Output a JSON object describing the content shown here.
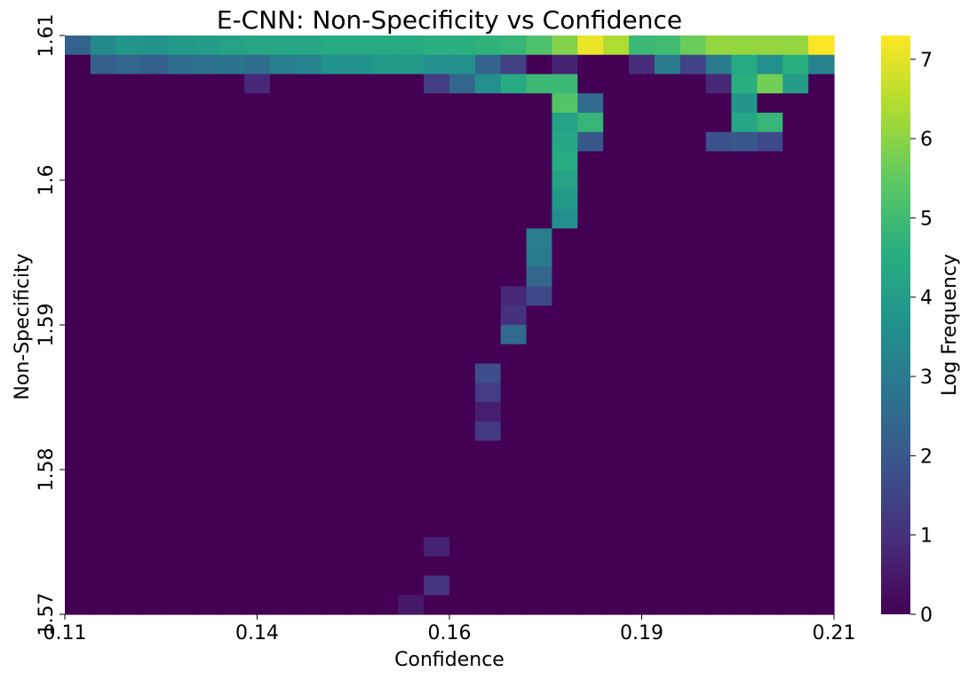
{
  "chart_data": {
    "type": "heatmap",
    "title": "E-CNN: Non-Specificity vs Confidence",
    "xlabel": "Confidence",
    "ylabel": "Non-Specificity",
    "colorbar_label": "Log Frequency",
    "colormap": "viridis",
    "colorbar_range": [
      0,
      7.3
    ],
    "colorbar_ticks": [
      "0",
      "1",
      "2",
      "3",
      "4",
      "5",
      "6",
      "7"
    ],
    "x_tick_labels": [
      "0.11",
      "0.14",
      "0.16",
      "0.19",
      "0.21"
    ],
    "y_tick_labels": [
      "1.61",
      "1.6",
      "1.59",
      "1.58",
      "1.57"
    ],
    "n_cols": 30,
    "n_rows": 30,
    "grid": false,
    "rows": [
      [
        2.3,
        3.4,
        3.8,
        3.7,
        3.9,
        4.0,
        4.2,
        4.3,
        4.3,
        4.3,
        4.4,
        4.4,
        4.4,
        4.4,
        4.6,
        4.6,
        4.7,
        4.8,
        5.2,
        5.9,
        7.1,
        6.4,
        4.9,
        5.0,
        5.6,
        6.1,
        6.1,
        6.1,
        6.1,
        7.3
      ],
      [
        0,
        2.2,
        2.4,
        2.2,
        2.6,
        2.7,
        2.8,
        2.6,
        3.1,
        3.2,
        3.7,
        3.7,
        3.9,
        3.9,
        3.6,
        3.6,
        2.3,
        1.4,
        0,
        0.7,
        0,
        0,
        0.9,
        3.0,
        1.5,
        3.0,
        4.4,
        3.6,
        4.6,
        3.2
      ],
      [
        0,
        0,
        0,
        0,
        0,
        0,
        0,
        0.8,
        0,
        0,
        0,
        0,
        0,
        0,
        1.3,
        2.4,
        3.6,
        4.4,
        4.9,
        4.9,
        0,
        0,
        0,
        0,
        0,
        0.8,
        4.6,
        5.7,
        4.0,
        0
      ],
      [
        0,
        0,
        0,
        0,
        0,
        0,
        0,
        0,
        0,
        0,
        0,
        0,
        0,
        0,
        0,
        0,
        0,
        0,
        0,
        5.3,
        2.5,
        0,
        0,
        0,
        0,
        0,
        3.8,
        0,
        0,
        0
      ],
      [
        0,
        0,
        0,
        0,
        0,
        0,
        0,
        0,
        0,
        0,
        0,
        0,
        0,
        0,
        0,
        0,
        0,
        0,
        0,
        4.2,
        4.8,
        0,
        0,
        0,
        0,
        0,
        4.3,
        4.8,
        0,
        0
      ],
      [
        0,
        0,
        0,
        0,
        0,
        0,
        0,
        0,
        0,
        0,
        0,
        0,
        0,
        0,
        0,
        0,
        0,
        0,
        0,
        4.3,
        2.0,
        0,
        0,
        0,
        0,
        1.8,
        2.0,
        1.6,
        0,
        0
      ],
      [
        0,
        0,
        0,
        0,
        0,
        0,
        0,
        0,
        0,
        0,
        0,
        0,
        0,
        0,
        0,
        0,
        0,
        0,
        0,
        4.5,
        0,
        0,
        0,
        0,
        0,
        0,
        0,
        0,
        0,
        0
      ],
      [
        0,
        0,
        0,
        0,
        0,
        0,
        0,
        0,
        0,
        0,
        0,
        0,
        0,
        0,
        0,
        0,
        0,
        0,
        0,
        4.2,
        0,
        0,
        0,
        0,
        0,
        0,
        0,
        0,
        0,
        0
      ],
      [
        0,
        0,
        0,
        0,
        0,
        0,
        0,
        0,
        0,
        0,
        0,
        0,
        0,
        0,
        0,
        0,
        0,
        0,
        0,
        3.9,
        0,
        0,
        0,
        0,
        0,
        0,
        0,
        0,
        0,
        0
      ],
      [
        0,
        0,
        0,
        0,
        0,
        0,
        0,
        0,
        0,
        0,
        0,
        0,
        0,
        0,
        0,
        0,
        0,
        0,
        0,
        3.6,
        0,
        0,
        0,
        0,
        0,
        0,
        0,
        0,
        0,
        0
      ],
      [
        0,
        0,
        0,
        0,
        0,
        0,
        0,
        0,
        0,
        0,
        0,
        0,
        0,
        0,
        0,
        0,
        0,
        0,
        3.1,
        0,
        0,
        0,
        0,
        0,
        0,
        0,
        0,
        0,
        0,
        0
      ],
      [
        0,
        0,
        0,
        0,
        0,
        0,
        0,
        0,
        0,
        0,
        0,
        0,
        0,
        0,
        0,
        0,
        0,
        0,
        3.0,
        0,
        0,
        0,
        0,
        0,
        0,
        0,
        0,
        0,
        0,
        0
      ],
      [
        0,
        0,
        0,
        0,
        0,
        0,
        0,
        0,
        0,
        0,
        0,
        0,
        0,
        0,
        0,
        0,
        0,
        0,
        2.4,
        0,
        0,
        0,
        0,
        0,
        0,
        0,
        0,
        0,
        0,
        0
      ],
      [
        0,
        0,
        0,
        0,
        0,
        0,
        0,
        0,
        0,
        0,
        0,
        0,
        0,
        0,
        0,
        0,
        0,
        0.8,
        1.6,
        0,
        0,
        0,
        0,
        0,
        0,
        0,
        0,
        0,
        0,
        0
      ],
      [
        0,
        0,
        0,
        0,
        0,
        0,
        0,
        0,
        0,
        0,
        0,
        0,
        0,
        0,
        0,
        0,
        0,
        1.0,
        0,
        0,
        0,
        0,
        0,
        0,
        0,
        0,
        0,
        0,
        0,
        0
      ],
      [
        0,
        0,
        0,
        0,
        0,
        0,
        0,
        0,
        0,
        0,
        0,
        0,
        0,
        0,
        0,
        0,
        0,
        2.5,
        0,
        0,
        0,
        0,
        0,
        0,
        0,
        0,
        0,
        0,
        0,
        0
      ],
      [
        0,
        0,
        0,
        0,
        0,
        0,
        0,
        0,
        0,
        0,
        0,
        0,
        0,
        0,
        0,
        0,
        0,
        0,
        0,
        0,
        0,
        0,
        0,
        0,
        0,
        0,
        0,
        0,
        0,
        0
      ],
      [
        0,
        0,
        0,
        0,
        0,
        0,
        0,
        0,
        0,
        0,
        0,
        0,
        0,
        0,
        0,
        0,
        1.7,
        0,
        0,
        0,
        0,
        0,
        0,
        0,
        0,
        0,
        0,
        0,
        0,
        0
      ],
      [
        0,
        0,
        0,
        0,
        0,
        0,
        0,
        0,
        0,
        0,
        0,
        0,
        0,
        0,
        0,
        0,
        1.3,
        0,
        0,
        0,
        0,
        0,
        0,
        0,
        0,
        0,
        0,
        0,
        0,
        0
      ],
      [
        0,
        0,
        0,
        0,
        0,
        0,
        0,
        0,
        0,
        0,
        0,
        0,
        0,
        0,
        0,
        0,
        0.6,
        0,
        0,
        0,
        0,
        0,
        0,
        0,
        0,
        0,
        0,
        0,
        0,
        0
      ],
      [
        0,
        0,
        0,
        0,
        0,
        0,
        0,
        0,
        0,
        0,
        0,
        0,
        0,
        0,
        0,
        0,
        1.2,
        0,
        0,
        0,
        0,
        0,
        0,
        0,
        0,
        0,
        0,
        0,
        0,
        0
      ],
      [
        0,
        0,
        0,
        0,
        0,
        0,
        0,
        0,
        0,
        0,
        0,
        0,
        0,
        0,
        0,
        0,
        0,
        0,
        0,
        0,
        0,
        0,
        0,
        0,
        0,
        0,
        0,
        0,
        0,
        0
      ],
      [
        0,
        0,
        0,
        0,
        0,
        0,
        0,
        0,
        0,
        0,
        0,
        0,
        0,
        0,
        0,
        0,
        0,
        0,
        0,
        0,
        0,
        0,
        0,
        0,
        0,
        0,
        0,
        0,
        0,
        0
      ],
      [
        0,
        0,
        0,
        0,
        0,
        0,
        0,
        0,
        0,
        0,
        0,
        0,
        0,
        0,
        0,
        0,
        0,
        0,
        0,
        0,
        0,
        0,
        0,
        0,
        0,
        0,
        0,
        0,
        0,
        0
      ],
      [
        0,
        0,
        0,
        0,
        0,
        0,
        0,
        0,
        0,
        0,
        0,
        0,
        0,
        0,
        0,
        0,
        0,
        0,
        0,
        0,
        0,
        0,
        0,
        0,
        0,
        0,
        0,
        0,
        0,
        0
      ],
      [
        0,
        0,
        0,
        0,
        0,
        0,
        0,
        0,
        0,
        0,
        0,
        0,
        0,
        0,
        0,
        0,
        0,
        0,
        0,
        0,
        0,
        0,
        0,
        0,
        0,
        0,
        0,
        0,
        0,
        0
      ],
      [
        0,
        0,
        0,
        0,
        0,
        0,
        0,
        0,
        0,
        0,
        0,
        0,
        0,
        0,
        0.7,
        0,
        0,
        0,
        0,
        0,
        0,
        0,
        0,
        0,
        0,
        0,
        0,
        0,
        0,
        0
      ],
      [
        0,
        0,
        0,
        0,
        0,
        0,
        0,
        0,
        0,
        0,
        0,
        0,
        0,
        0,
        0,
        0,
        0,
        0,
        0,
        0,
        0,
        0,
        0,
        0,
        0,
        0,
        0,
        0,
        0,
        0
      ],
      [
        0,
        0,
        0,
        0,
        0,
        0,
        0,
        0,
        0,
        0,
        0,
        0,
        0,
        0,
        1.1,
        0,
        0,
        0,
        0,
        0,
        0,
        0,
        0,
        0,
        0,
        0,
        0,
        0,
        0,
        0
      ],
      [
        0,
        0,
        0,
        0,
        0,
        0,
        0,
        0,
        0,
        0,
        0,
        0,
        0,
        0.5,
        0,
        0,
        0,
        0,
        0,
        0,
        0,
        0,
        0,
        0,
        0,
        0,
        0,
        0,
        0,
        0
      ]
    ]
  }
}
